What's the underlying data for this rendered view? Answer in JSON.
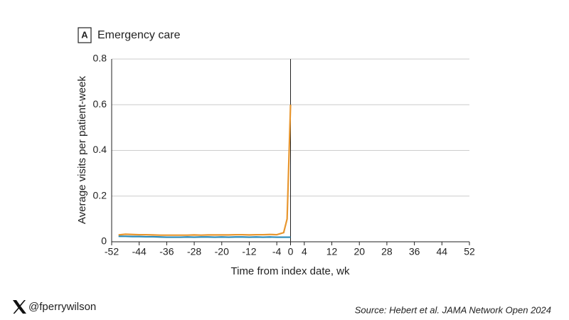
{
  "chart_data": {
    "type": "line",
    "panel_label": "A",
    "title": "Emergency care",
    "x_label": "Time from index date, wk",
    "y_label": "Average visits per patient-week",
    "x": [
      -50,
      -48,
      -46,
      -44,
      -42,
      -40,
      -38,
      -36,
      -34,
      -32,
      -30,
      -28,
      -26,
      -24,
      -22,
      -20,
      -18,
      -16,
      -14,
      -12,
      -10,
      -8,
      -6,
      -4,
      -2,
      -1,
      0
    ],
    "series": [
      {
        "color": "#e8962e",
        "values": [
          0.03,
          0.033,
          0.032,
          0.031,
          0.031,
          0.03,
          0.029,
          0.029,
          0.029,
          0.029,
          0.029,
          0.03,
          0.029,
          0.03,
          0.03,
          0.03,
          0.03,
          0.031,
          0.031,
          0.03,
          0.031,
          0.031,
          0.032,
          0.031,
          0.04,
          0.1,
          0.6
        ]
      },
      {
        "color": "#2a8ab8",
        "values": [
          0.024,
          0.024,
          0.023,
          0.023,
          0.022,
          0.022,
          0.021,
          0.02,
          0.02,
          0.02,
          0.021,
          0.02,
          0.021,
          0.021,
          0.02,
          0.021,
          0.02,
          0.021,
          0.021,
          0.02,
          0.021,
          0.02,
          0.021,
          0.02,
          0.02,
          0.02,
          0.02
        ]
      }
    ],
    "xlim": [
      -52,
      52
    ],
    "xticks": [
      -52,
      -44,
      -36,
      -28,
      -20,
      -12,
      -4,
      0,
      4,
      12,
      20,
      28,
      36,
      44,
      52
    ],
    "ylim": [
      0,
      0.8
    ],
    "yticks": [
      0,
      0.2,
      0.4,
      0.6,
      0.8
    ],
    "grid": true,
    "index_line": 0
  },
  "footer": {
    "handle": "@fperrywilson",
    "source": "Source: Hebert et al. JAMA Network Open 2024"
  }
}
